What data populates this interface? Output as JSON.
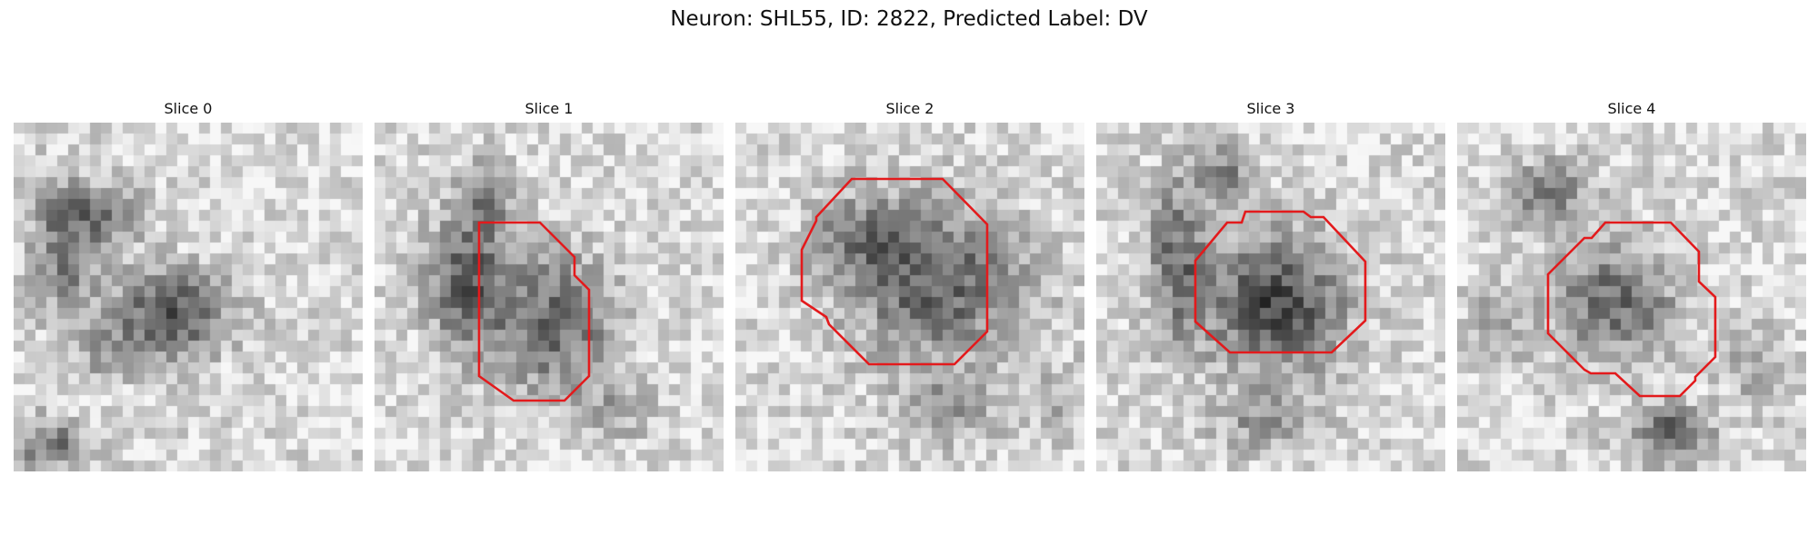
{
  "figure": {
    "title": "Neuron: SHL55, ID: 2822, Predicted Label: DV"
  },
  "colors": {
    "contour": "#e31a1c",
    "background": "#ffffff"
  },
  "panels": [
    {
      "title": "Slice 0",
      "contour_visible": false,
      "pattern": "two dark blobs: diagonal band upper-left and dense cell body center-right"
    },
    {
      "title": "Slice 1",
      "contour_visible": true,
      "pattern": "dark cell body center-right with dark region on left"
    },
    {
      "title": "Slice 2",
      "contour_visible": true,
      "pattern": "large dark cell body filling center"
    },
    {
      "title": "Slice 3",
      "contour_visible": true,
      "pattern": "very dark cell body center with dark band on left"
    },
    {
      "title": "Slice 4",
      "contour_visible": true,
      "pattern": "medium gray cell body center with dark spot lower-right"
    }
  ]
}
